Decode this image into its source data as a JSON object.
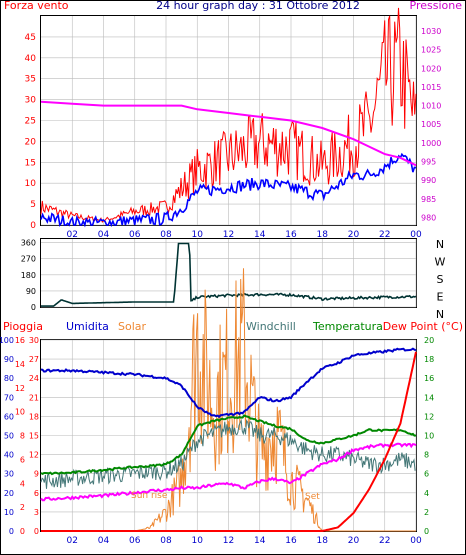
{
  "title": "24 hour graph day : 31 Ottobre 2012",
  "colors": {
    "wind": "#ff0000",
    "wind_avg": "#0000ff",
    "pressure": "#ff00ff",
    "direction": "#003333",
    "rain": "#ff0000",
    "humidity": "#0000cc",
    "solar": "#ee8833",
    "windchill": "#447777",
    "temperature": "#008800",
    "dewpoint": "#ff00ff",
    "axis_left": "#ff0000",
    "axis_right": "#cc00cc",
    "axis_blue": "#0000cc",
    "axis_green": "#008800",
    "grid": "#bbbbbb"
  },
  "x_ticks": [
    "02",
    "04",
    "06",
    "08",
    "10",
    "12",
    "14",
    "16",
    "18",
    "20",
    "22",
    "00"
  ],
  "wind_panel": {
    "left_label": "Forza vento",
    "right_label": "Pressione",
    "left_ticks": [
      "0",
      "5",
      "10",
      "15",
      "20",
      "25",
      "30",
      "35",
      "40",
      "45"
    ],
    "right_ticks": [
      "980",
      "985",
      "990",
      "995",
      "1000",
      "1005",
      "1010",
      "1015",
      "1020",
      "1025",
      "1030"
    ]
  },
  "dir_panel": {
    "left_ticks": [
      "0",
      "90",
      "180",
      "270",
      "360"
    ],
    "compass": [
      "N",
      "W",
      "S",
      "E",
      "N"
    ]
  },
  "temp_panel": {
    "labels": {
      "rain": "Pioggia",
      "humidity": "Umidita",
      "solar": "Solar",
      "windchill": "Windchill",
      "temperature": "Temperatura",
      "dewpoint": "Dew Point (°C)"
    },
    "hum_ticks": [
      "0",
      "10",
      "20",
      "30",
      "40",
      "50",
      "60",
      "70",
      "80",
      "90",
      "100"
    ],
    "rain_ticks": [
      "0",
      "2",
      "4",
      "6",
      "8",
      "10",
      "12",
      "14",
      "16"
    ],
    "solar_ticks": [
      "0",
      "3",
      "6",
      "9",
      "12",
      "15",
      "18",
      "21",
      "24",
      "27",
      "30"
    ],
    "temp_ticks": [
      "0",
      "2",
      "4",
      "6",
      "8",
      "10",
      "12",
      "14",
      "16",
      "18",
      "20"
    ],
    "sunrise": "Sun rise",
    "sunset": "Set"
  },
  "chart_data": [
    {
      "type": "line",
      "title": "24 hour graph day : 31 Ottobre 2012",
      "xlabel": "",
      "ylabel": "Forza vento",
      "y2label": "Pressione",
      "x": [
        0,
        2,
        4,
        6,
        8,
        9,
        10,
        12,
        14,
        16,
        18,
        20,
        21,
        22,
        23,
        24
      ],
      "series": [
        {
          "name": "Forza vento",
          "axis": "left",
          "values": [
            4,
            2,
            1,
            3,
            4,
            8,
            12,
            15,
            18,
            17,
            13,
            18,
            22,
            32,
            35,
            22
          ]
        },
        {
          "name": "",
          "axis": "left",
          "values": [
            2,
            0.5,
            0.5,
            1,
            1.5,
            4,
            8,
            9,
            10,
            9,
            7,
            12,
            12,
            14,
            17,
            13
          ]
        },
        {
          "name": "Pressione",
          "axis": "right",
          "values": [
            1011,
            1010.5,
            1010,
            1010,
            1010,
            1010,
            1009,
            1008,
            1007,
            1006,
            1004,
            1001,
            999,
            997,
            996,
            994
          ]
        }
      ],
      "xlim": [
        0,
        24
      ],
      "ylim": [
        0,
        50
      ],
      "y2lim": [
        978,
        1034
      ],
      "grid": true
    },
    {
      "type": "line",
      "x": [
        0,
        0.8,
        1.3,
        2,
        6,
        8.5,
        8.8,
        9.5,
        9.6,
        10,
        12,
        14,
        16,
        18,
        20,
        22,
        24
      ],
      "series": [
        {
          "name": "",
          "values": [
            5,
            5,
            40,
            20,
            28,
            28,
            355,
            355,
            30,
            55,
            65,
            70,
            68,
            45,
            50,
            55,
            58
          ]
        }
      ],
      "xlim": [
        0,
        24
      ],
      "ylim": [
        0,
        380
      ],
      "grid": true
    },
    {
      "type": "line",
      "x": [
        0,
        2,
        4,
        6,
        7,
        8,
        9,
        10,
        11,
        12,
        13,
        14,
        15,
        16,
        17,
        18,
        19,
        20,
        21,
        22,
        23,
        24
      ],
      "series": [
        {
          "name": "Umidita",
          "axis": "humidity",
          "values": [
            84,
            84,
            83,
            82,
            81,
            80,
            76,
            65,
            60,
            61,
            62,
            70,
            68,
            70,
            78,
            85,
            88,
            92,
            93,
            94,
            95,
            95
          ]
        },
        {
          "name": "Temperatura",
          "axis": "temperature",
          "values": [
            6,
            6.1,
            6.4,
            6.7,
            6.8,
            7,
            8,
            11,
            11.5,
            11.8,
            12,
            11.5,
            11,
            10.7,
            9.5,
            9.2,
            9.6,
            10,
            10.6,
            10.5,
            10.6,
            10
          ]
        },
        {
          "name": "Windchill",
          "axis": "temperature",
          "values": [
            5.2,
            5.5,
            5.8,
            6,
            6.2,
            6.3,
            7,
            9.5,
            10.2,
            10.8,
            11,
            10,
            10,
            9.5,
            8.5,
            8,
            8,
            7.5,
            7,
            7,
            7.5,
            7
          ]
        },
        {
          "name": "Dew Point (°C)",
          "axis": "temperature",
          "values": [
            3.3,
            3.5,
            3.7,
            4,
            4.2,
            4.3,
            4.5,
            4.5,
            4.8,
            5,
            4.5,
            5.2,
            5.5,
            5,
            6,
            7,
            7.5,
            8.5,
            8.8,
            9,
            9,
            9
          ]
        },
        {
          "name": "Pioggia",
          "axis": "rain",
          "values": [
            0,
            0,
            0,
            0,
            0,
            0,
            0,
            0,
            0,
            0,
            0,
            0,
            0,
            0,
            0,
            0,
            0.3,
            1.5,
            3.5,
            6,
            9,
            15
          ]
        },
        {
          "name": "Solar",
          "axis": "solar",
          "values": [
            0,
            0,
            0,
            0,
            0.5,
            3,
            8,
            30,
            20,
            24,
            28,
            12,
            16,
            8,
            5,
            0,
            0,
            0,
            0,
            0,
            0,
            0
          ]
        }
      ],
      "xlim": [
        0,
        24
      ],
      "ylim_humidity": [
        0,
        100
      ],
      "ylim_rain": [
        0,
        16
      ],
      "ylim_solar": [
        0,
        30
      ],
      "ylim_temperature": [
        0,
        20
      ],
      "grid": true
    }
  ]
}
